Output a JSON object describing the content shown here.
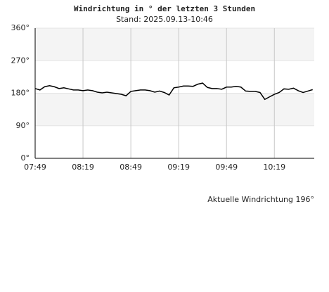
{
  "chart_data": {
    "type": "line",
    "title": "Windrichtung in ° der letzten 3 Stunden",
    "subtitle": "Stand: 2025.09.13-10:46",
    "annotation": "Aktuelle Windrichtung 196°",
    "x": [
      "07:49",
      "07:52",
      "07:55",
      "07:58",
      "08:01",
      "08:04",
      "08:07",
      "08:10",
      "08:13",
      "08:16",
      "08:19",
      "08:22",
      "08:25",
      "08:28",
      "08:31",
      "08:34",
      "08:37",
      "08:40",
      "08:43",
      "08:46",
      "08:49",
      "08:52",
      "08:55",
      "08:58",
      "09:01",
      "09:04",
      "09:07",
      "09:10",
      "09:13",
      "09:16",
      "09:19",
      "09:22",
      "09:25",
      "09:28",
      "09:31",
      "09:34",
      "09:37",
      "09:40",
      "09:43",
      "09:46",
      "09:49",
      "09:52",
      "09:55",
      "09:58",
      "10:01",
      "10:04",
      "10:07",
      "10:10",
      "10:13",
      "10:16",
      "10:19",
      "10:22",
      "10:25",
      "10:28",
      "10:31",
      "10:34",
      "10:37",
      "10:40",
      "10:43"
    ],
    "values": [
      193,
      189,
      198,
      201,
      198,
      193,
      195,
      192,
      189,
      189,
      187,
      189,
      187,
      183,
      181,
      183,
      181,
      179,
      177,
      173,
      185,
      187,
      189,
      189,
      187,
      183,
      186,
      182,
      175,
      195,
      197,
      200,
      200,
      199,
      205,
      208,
      196,
      193,
      193,
      191,
      197,
      197,
      199,
      197,
      186,
      185,
      185,
      182,
      163,
      170,
      177,
      182,
      192,
      191,
      194,
      187,
      182,
      186,
      190
    ],
    "color": "#000000",
    "xlim": [
      "07:49",
      "10:44"
    ],
    "xticks": [
      "07:49",
      "08:19",
      "08:49",
      "09:19",
      "09:49",
      "10:19"
    ],
    "ylim": [
      0,
      360
    ],
    "yticks": [
      {
        "value": 0,
        "label": "0°"
      },
      {
        "value": 90,
        "label": "90°"
      },
      {
        "value": 180,
        "label": "180°"
      },
      {
        "value": 270,
        "label": "270°"
      },
      {
        "value": 360,
        "label": "360°"
      }
    ],
    "grid": true
  }
}
